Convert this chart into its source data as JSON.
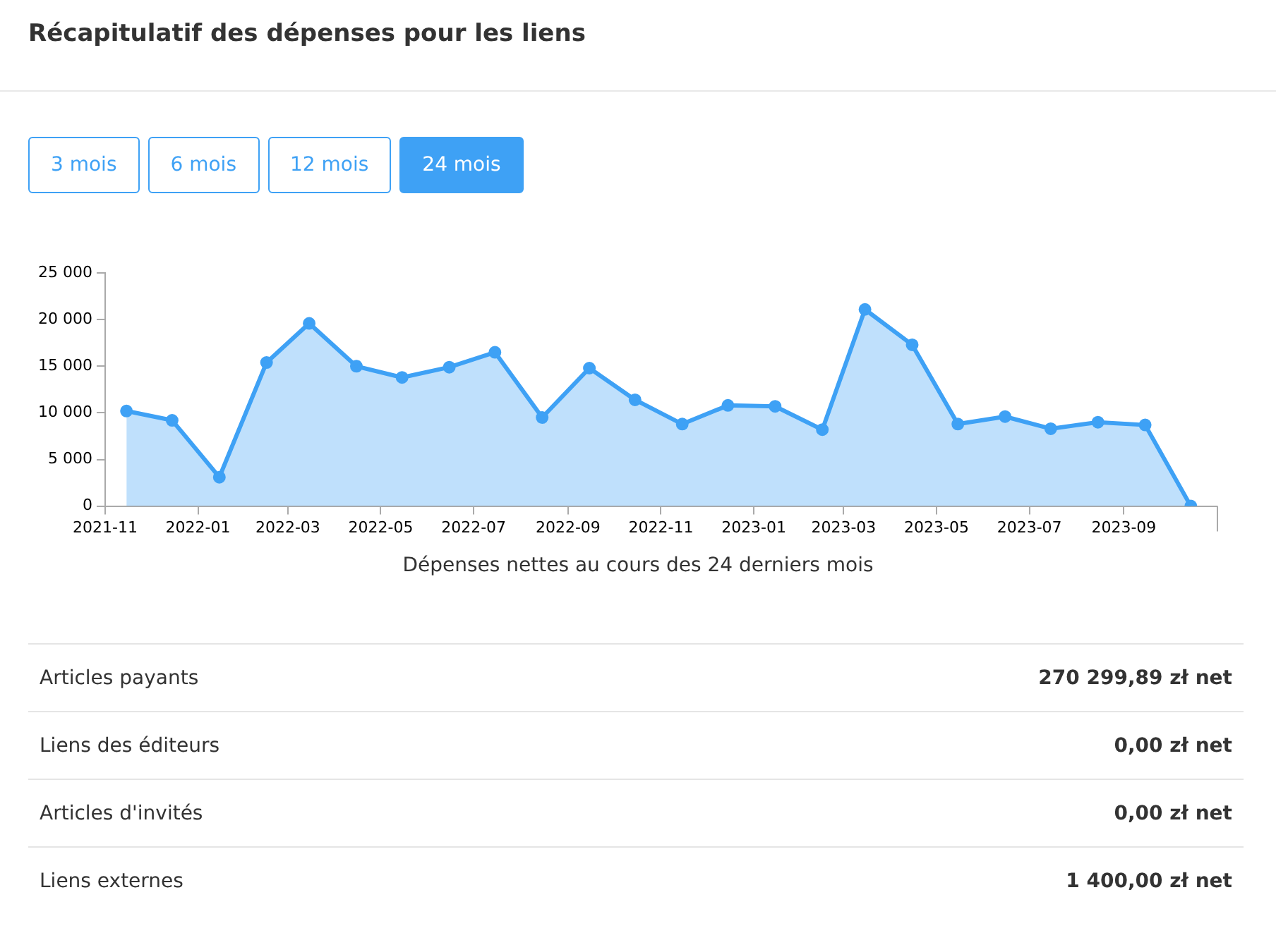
{
  "chart_data": [
    {
      "type": "area",
      "title": "Récapitulatif des dépenses pour les liens",
      "xlabel": "Dépenses nettes au cours des 24 derniers mois",
      "annotations": [
        "3 mois",
        "6 mois",
        "12 mois",
        "24 mois"
      ],
      "x": [
        "2021-11-15",
        "2021-12-15",
        "2022-01-15",
        "2022-02-15",
        "2022-03-15",
        "2022-04-15",
        "2022-05-15",
        "2022-06-15",
        "2022-07-15",
        "2022-08-15",
        "2022-09-15",
        "2022-10-15",
        "2022-11-15",
        "2022-12-15",
        "2023-01-15",
        "2023-02-15",
        "2023-03-15",
        "2023-04-15",
        "2023-05-15",
        "2023-06-15",
        "2023-07-15",
        "2023-08-15",
        "2023-09-15",
        "2023-10-15"
      ],
      "series": [
        {
          "color": "#3ea1f5",
          "values": [
            10200,
            9200,
            3100,
            15400,
            19600,
            15000,
            13800,
            14900,
            16500,
            9500,
            14800,
            11400,
            8800,
            10800,
            10700,
            8200,
            21100,
            17300,
            8800,
            9600,
            8300,
            9000,
            8700,
            0
          ]
        }
      ],
      "xlim": [
        "2021-11",
        "2023-11"
      ],
      "xticks": [
        "2021-11",
        "2022-01",
        "2022-03",
        "2022-05",
        "2022-07",
        "2022-09",
        "2022-11",
        "2023-01",
        "2023-03",
        "2023-05",
        "2023-07",
        "2023-09"
      ],
      "ylim": [
        0,
        25000
      ],
      "yticks": [
        0,
        {
          "value": 5000,
          "label": "5 000"
        },
        {
          "value": 10000,
          "label": "10 000"
        },
        {
          "value": 15000,
          "label": "15 000"
        },
        {
          "value": 20000,
          "label": "20 000"
        },
        {
          "value": 25000,
          "label": "25 000"
        }
      ],
      "grid": false,
      "legend": false,
      "marker": "circle",
      "line_style": "solid"
    },
    {
      "type": "other",
      "categories": [
        "Articles payants",
        "Liens des éditeurs",
        "Articles d'invités",
        "Liens externes"
      ],
      "annotations": [
        "270 299,89 zł net",
        "0,00 zł net",
        "0,00 zł net",
        "1 400,00 zł net"
      ]
    }
  ]
}
